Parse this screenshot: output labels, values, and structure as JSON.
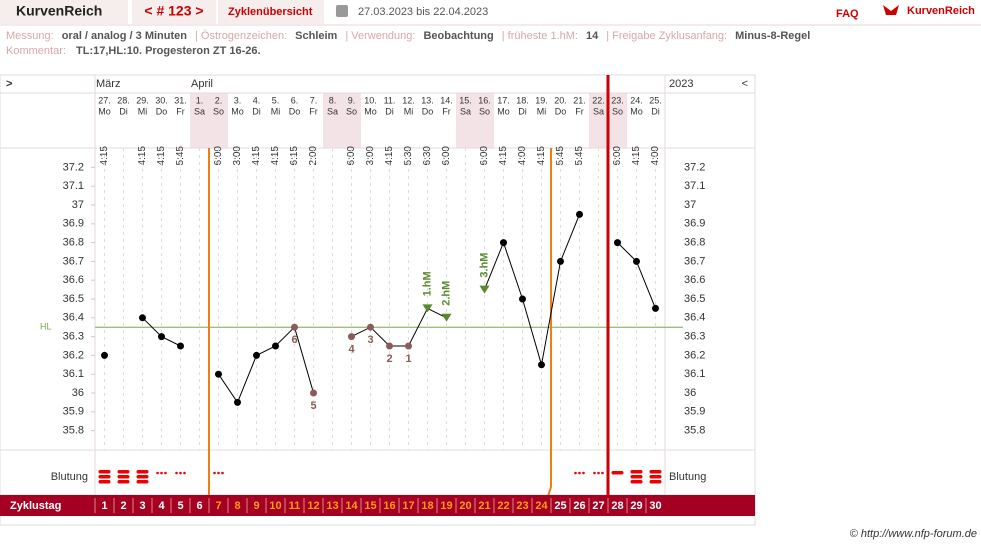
{
  "header": {
    "brand": "KurvenReich",
    "nav": "< # 123 >",
    "overview": "Zyklenübersicht",
    "range": "27.03.2023 bis 22.04.2023",
    "faq": "FAQ",
    "logo": "KurvenReich"
  },
  "info": {
    "fields": [
      {
        "label": "Messung:",
        "value": "oral / analog / 3 Minuten"
      },
      {
        "label": "| Östrogenzeichen:",
        "value": "Schleim"
      },
      {
        "label": "| Verwendung:",
        "value": "Beobachtung"
      },
      {
        "label": "| früheste 1.hM:",
        "value": "14"
      },
      {
        "label": "| Freigabe Zyklusanfang:",
        "value": "Minus-8-Regel"
      }
    ],
    "comment_label": "Kommentar:",
    "comment": "TL:17,HL:10. Progesteron ZT 16-26."
  },
  "footer": "© http://www.nfp-forum.de",
  "chart_data": {
    "type": "line",
    "nav_left": ">",
    "nav_right": "<",
    "year": "2023",
    "months": [
      "März",
      null,
      null,
      null,
      null,
      "April",
      null,
      null,
      null,
      null,
      null,
      null,
      null,
      null,
      null,
      null,
      null,
      null,
      null,
      null,
      null,
      null,
      null,
      null,
      null,
      null,
      null,
      null,
      null,
      null
    ],
    "dates": [
      "27.",
      "28.",
      "29.",
      "30.",
      "31.",
      "1.",
      "2.",
      "3.",
      "4.",
      "5.",
      "6.",
      "7.",
      "8.",
      "9.",
      "10.",
      "11.",
      "12.",
      "13.",
      "14.",
      "15.",
      "16.",
      "17.",
      "18.",
      "19.",
      "20.",
      "21.",
      "22.",
      "23.",
      "24.",
      "25."
    ],
    "weekdays": [
      "Mo",
      "Di",
      "Mi",
      "Do",
      "Fr",
      "Sa",
      "So",
      "Mo",
      "Di",
      "Mi",
      "Do",
      "Fr",
      "Sa",
      "So",
      "Mo",
      "Di",
      "Mi",
      "Do",
      "Fr",
      "Sa",
      "So",
      "Mo",
      "Di",
      "Mi",
      "Do",
      "Fr",
      "Sa",
      "So",
      "Mo",
      "Di"
    ],
    "times": [
      "4:15",
      null,
      "4:15",
      "4:15",
      "5:45",
      null,
      "6:00",
      "3:00",
      "4:15",
      "4:15",
      "6:15",
      "2:00",
      null,
      "6:00",
      "3:00",
      "4:15",
      "5:30",
      "6:30",
      "6:00",
      null,
      "6:00",
      "4:15",
      "4:00",
      "4:15",
      "5:45",
      "5:45",
      null,
      "6:00",
      "4:15",
      "4:00"
    ],
    "values": [
      36.2,
      null,
      36.4,
      36.3,
      36.25,
      null,
      36.1,
      35.95,
      36.2,
      36.25,
      36.35,
      36.0,
      null,
      36.3,
      36.35,
      36.25,
      36.25,
      36.45,
      36.4,
      null,
      36.55,
      36.8,
      36.5,
      36.15,
      36.7,
      36.95,
      null,
      36.8,
      36.7,
      36.45
    ],
    "point_labels": [
      null,
      null,
      null,
      null,
      null,
      null,
      null,
      null,
      null,
      null,
      "6",
      "5",
      null,
      "4",
      "3",
      "2",
      "1",
      null,
      null,
      null,
      null,
      null,
      null,
      null,
      null,
      null,
      null,
      null,
      null,
      null
    ],
    "hm_labels": [
      null,
      null,
      null,
      null,
      null,
      null,
      null,
      null,
      null,
      null,
      null,
      null,
      null,
      null,
      null,
      null,
      null,
      "1.hM",
      "2.hM",
      null,
      "3.hM",
      null,
      null,
      null,
      null,
      null,
      null,
      null,
      null,
      null
    ],
    "ylim": [
      35.75,
      37.25
    ],
    "yticks": [
      35.8,
      35.9,
      36,
      36.1,
      36.2,
      36.3,
      36.4,
      36.5,
      36.6,
      36.7,
      36.8,
      36.9,
      37,
      37.1,
      37.2
    ],
    "hl": 36.35,
    "hl_label": "HL",
    "bleeding_label": "Blutung",
    "bleeding": [
      "heavy",
      "heavy",
      "heavy",
      "spot",
      "spot",
      null,
      "spot",
      null,
      null,
      null,
      null,
      null,
      null,
      null,
      null,
      null,
      null,
      null,
      null,
      null,
      null,
      null,
      null,
      null,
      null,
      "spot",
      "spot",
      "light",
      "heavy",
      "heavy"
    ],
    "cycle_label": "Zyklustag",
    "cycle_days": [
      1,
      2,
      3,
      4,
      5,
      6,
      7,
      8,
      9,
      10,
      11,
      12,
      13,
      14,
      15,
      16,
      17,
      18,
      19,
      20,
      21,
      22,
      23,
      24,
      25,
      26,
      27,
      28,
      29,
      30
    ],
    "weekend": [
      "Sa",
      "So"
    ],
    "color": "#000000",
    "excluded_color": "#8b5a5a",
    "hm_color": "#5b8a2e",
    "hl_color": "#7fa650",
    "cycle_line_color": "#f07d12",
    "new_cycle_color": "#cc0000"
  }
}
